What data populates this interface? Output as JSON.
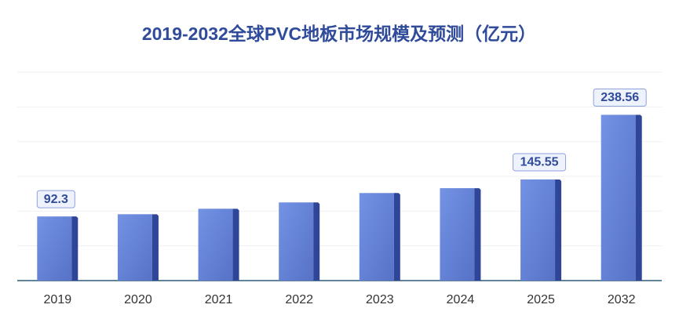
{
  "chart_data": {
    "type": "bar",
    "title": "2019-2032全球PVC地板市场规模及预测（亿元）",
    "categories": [
      "2019",
      "2020",
      "2021",
      "2022",
      "2023",
      "2024",
      "2025",
      "2032"
    ],
    "values": [
      92.3,
      95.5,
      103.4,
      112.5,
      126,
      133,
      145.55,
      238.56
    ],
    "value_labels": [
      "92.3",
      null,
      null,
      null,
      null,
      null,
      "145.55",
      "238.56"
    ],
    "color": "#6a88dc",
    "ylim": [
      0,
      300
    ],
    "yticks": [
      0,
      50,
      100,
      150,
      200,
      250,
      300
    ],
    "grid": true
  }
}
